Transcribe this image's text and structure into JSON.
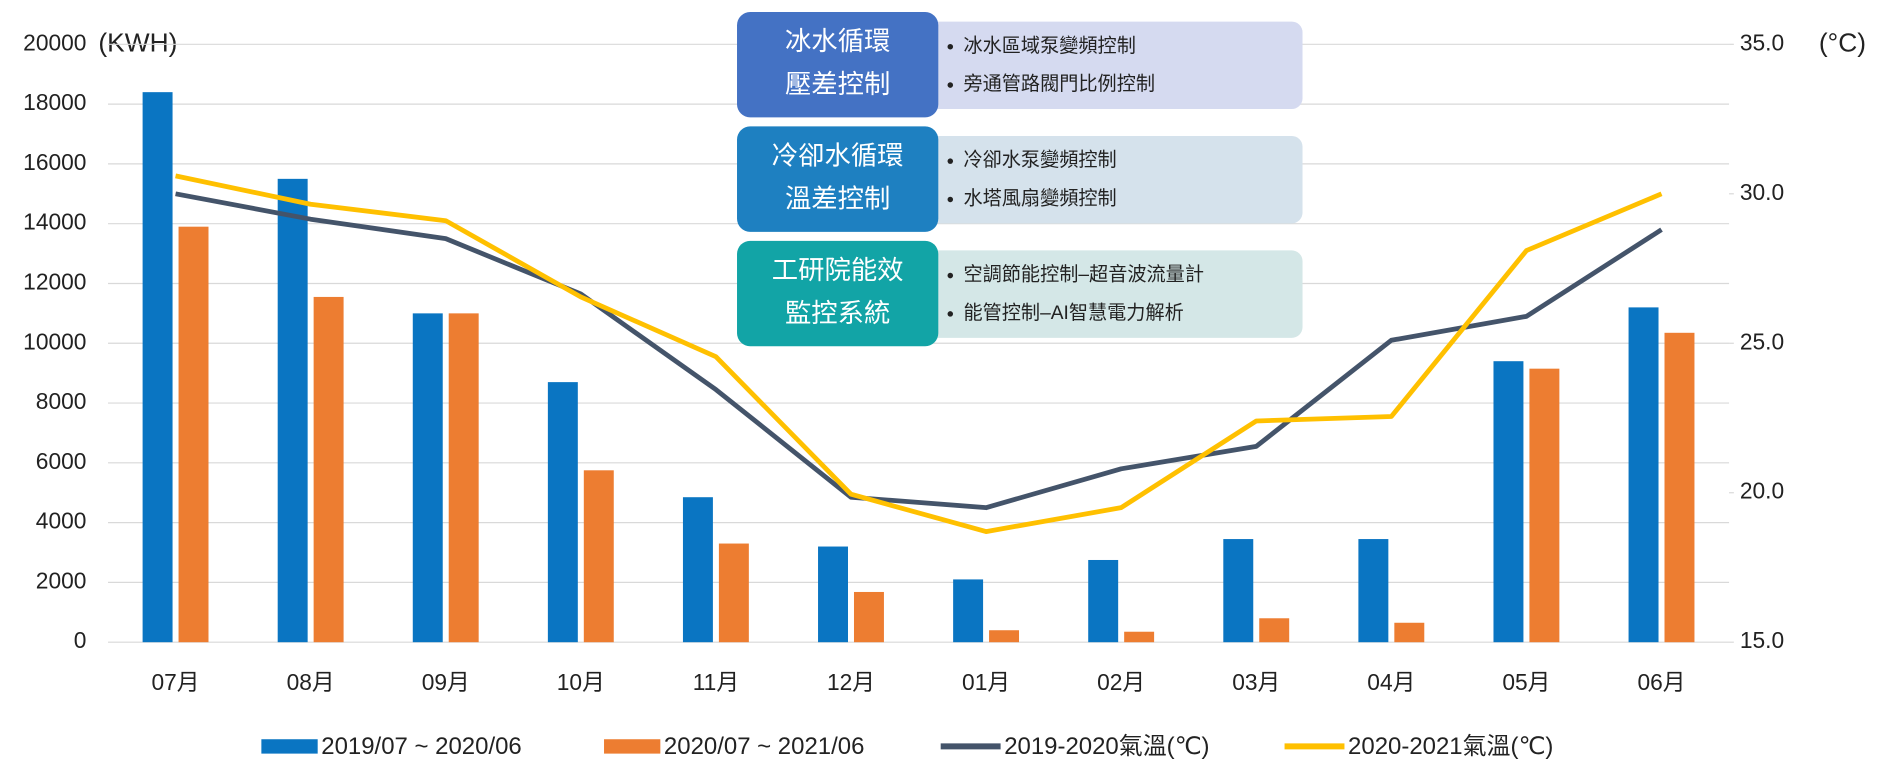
{
  "chart_data": {
    "type": "bar",
    "y_unit": "(KWH)",
    "y2_unit": "(°C)",
    "categories": [
      "07月",
      "08月",
      "09月",
      "10月",
      "11月",
      "12月",
      "01月",
      "02月",
      "03月",
      "04月",
      "05月",
      "06月"
    ],
    "series": [
      {
        "name": "2019/07 ~ 2020/06",
        "type": "bar",
        "color": "#0a75c2",
        "values": [
          18400,
          15500,
          11000,
          8700,
          4850,
          3200,
          2100,
          2750,
          3450,
          3450,
          9400,
          11200
        ]
      },
      {
        "name": "2020/07 ~ 2021/06",
        "type": "bar",
        "color": "#ed7d31",
        "values": [
          13900,
          11550,
          11000,
          5750,
          3300,
          1680,
          400,
          350,
          800,
          650,
          9150,
          10350
        ]
      },
      {
        "name": "2019-2020氣溫(℃)",
        "type": "line",
        "axis": "y2",
        "color": "#44546a",
        "values": [
          30.0,
          29.15,
          28.5,
          26.65,
          23.45,
          19.85,
          19.5,
          20.8,
          21.55,
          25.1,
          25.9,
          28.8
        ]
      },
      {
        "name": "2020-2021氣溫(℃)",
        "type": "line",
        "axis": "y2",
        "color": "#ffc000",
        "values": [
          30.6,
          29.65,
          29.1,
          26.55,
          24.55,
          19.95,
          18.7,
          19.5,
          22.4,
          22.55,
          28.1,
          30.0
        ]
      }
    ],
    "ylim": [
      0,
      20000
    ],
    "yticks": [
      0,
      2000,
      4000,
      6000,
      8000,
      10000,
      12000,
      14000,
      16000,
      18000,
      20000
    ],
    "y2lim": [
      15,
      35
    ],
    "y2ticks": [
      {
        "value": 15,
        "label": "15.0"
      },
      {
        "value": 20,
        "label": "20.0"
      },
      {
        "value": 25,
        "label": "25.0"
      },
      {
        "value": 30,
        "label": "30.0"
      },
      {
        "value": 35,
        "label": "35.0"
      }
    ],
    "grid": true,
    "legend": "bottom",
    "info_boxes": [
      {
        "title": [
          "冰水循環",
          "壓差控制"
        ],
        "items": [
          "冰水區域泵變頻控制",
          "旁通管路閥門比例控制"
        ],
        "color": "#4472c4",
        "bg": "#d5daf0"
      },
      {
        "title": [
          "冷卻水循環",
          "溫差控制"
        ],
        "items": [
          "冷卻水泵變頻控制",
          "水塔風扇變頻控制"
        ],
        "color": "#1e80c1",
        "bg": "#d5e2ec"
      },
      {
        "title": [
          "工研院能效",
          "監控系統"
        ],
        "items": [
          "空調節能控制–超音波流量計",
          "能管控制–AI智慧電力解析"
        ],
        "color": "#12a4a6",
        "bg": "#d4e7e7"
      }
    ]
  }
}
